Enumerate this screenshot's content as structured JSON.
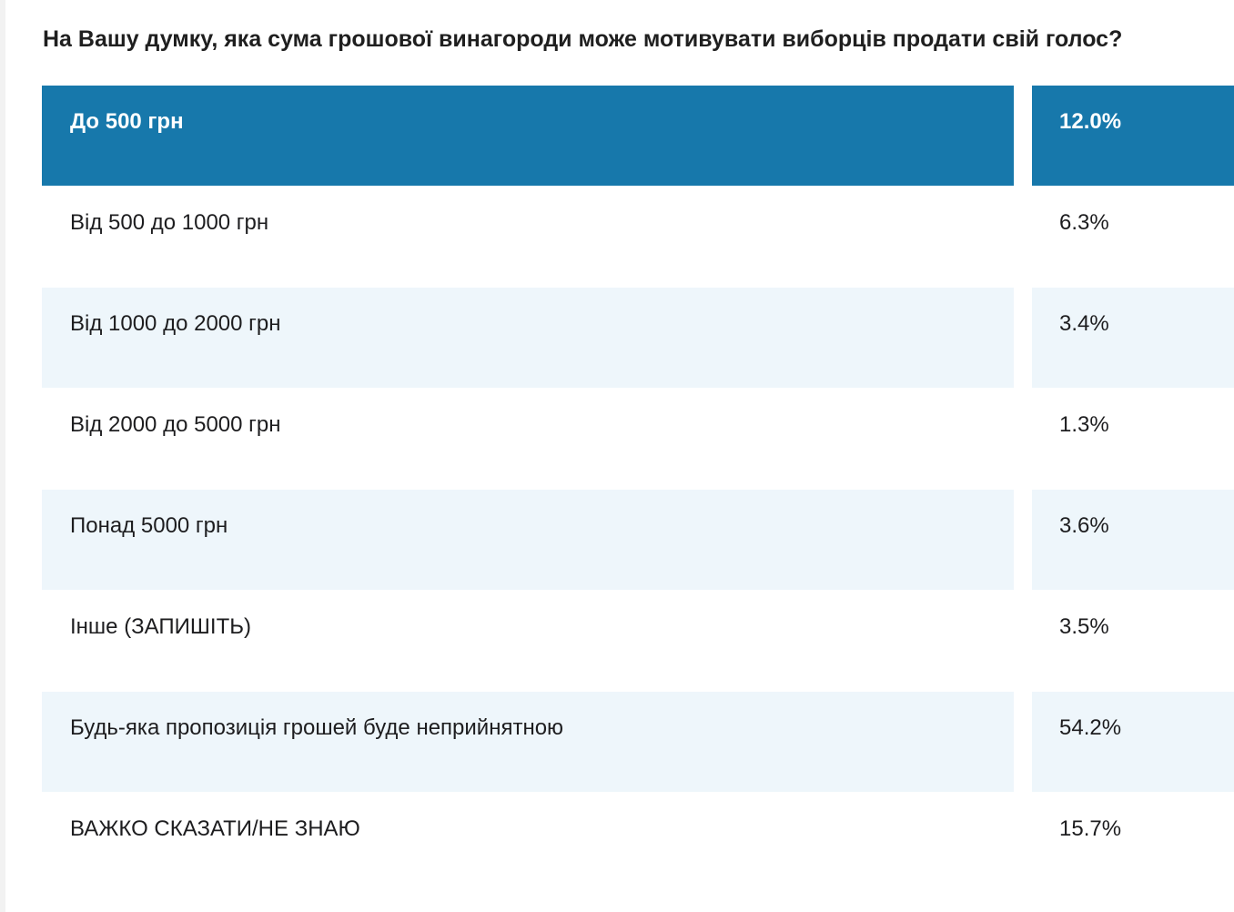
{
  "chart_data": {
    "type": "table",
    "title": "На Вашу думку, яка сума грошової винагороди може мотивувати виборців продати свій голос?",
    "rows": [
      {
        "label": "До 500 грн",
        "value": "12.0%"
      },
      {
        "label": "Від 500 до 1000 грн",
        "value": "6.3%"
      },
      {
        "label": "Від 1000 до 2000 грн",
        "value": "3.4%"
      },
      {
        "label": "Від 2000 до 5000 грн",
        "value": "1.3%"
      },
      {
        "label": "Понад 5000 грн",
        "value": "3.6%"
      },
      {
        "label": "Інше (ЗАПИШІТЬ)",
        "value": "3.5%"
      },
      {
        "label": "Будь-яка пропозиція грошей буде неприйнятною",
        "value": "54.2%"
      },
      {
        "label": "ВАЖКО СКАЗАТИ/НЕ ЗНАЮ",
        "value": "15.7%"
      }
    ],
    "values": [
      12.0,
      6.3,
      3.4,
      1.3,
      3.6,
      3.5,
      54.2,
      15.7
    ],
    "unit": "%",
    "highlighted_row": 0,
    "colors": {
      "highlight": "#1778ab",
      "highlight_text": "#ffffff",
      "alt_row": "#eef6fb",
      "row": "#ffffff",
      "text": "#1d1d1f"
    }
  }
}
